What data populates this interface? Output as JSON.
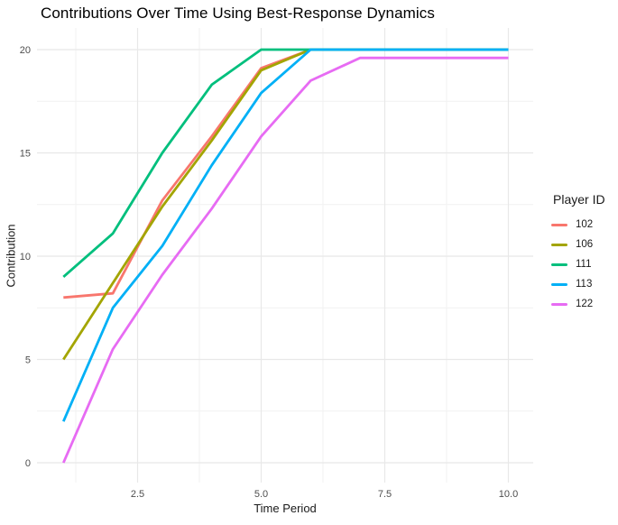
{
  "title": "Contributions Over Time Using Best-Response Dynamics",
  "chart_data": {
    "type": "line",
    "title": "Contributions Over Time Using Best-Response Dynamics",
    "xlabel": "Time Period",
    "ylabel": "Contribution",
    "x": [
      1,
      2,
      3,
      4,
      5,
      6,
      7,
      8,
      9,
      10
    ],
    "series": [
      {
        "name": "102",
        "color": "#F8766D",
        "values": [
          8.0,
          8.2,
          12.7,
          15.8,
          19.1,
          20,
          20,
          20,
          20,
          20
        ]
      },
      {
        "name": "106",
        "color": "#A3A500",
        "values": [
          5.0,
          8.7,
          12.4,
          15.6,
          19.0,
          20,
          20,
          20,
          20,
          20
        ]
      },
      {
        "name": "111",
        "color": "#00BF7D",
        "values": [
          9.0,
          11.1,
          15.0,
          18.3,
          20,
          20,
          20,
          20,
          20,
          20
        ]
      },
      {
        "name": "113",
        "color": "#00B0F6",
        "values": [
          2.0,
          7.5,
          10.5,
          14.4,
          17.9,
          20,
          20,
          20,
          20,
          20
        ]
      },
      {
        "name": "122",
        "color": "#E76BF3",
        "values": [
          0.0,
          5.5,
          9.1,
          12.3,
          15.8,
          18.5,
          19.6,
          19.6,
          19.6,
          19.6
        ]
      }
    ],
    "xlim": [
      0.55,
      10.45
    ],
    "ylim": [
      -1,
      21
    ],
    "x_ticks": {
      "values": [
        2.5,
        5.0,
        7.5,
        10.0
      ],
      "labels": [
        "2.5",
        "5.0",
        "7.5",
        "10.0"
      ]
    },
    "y_ticks": {
      "values": [
        0,
        5,
        10,
        15,
        20
      ],
      "labels": [
        "0",
        "5",
        "10",
        "15",
        "20"
      ]
    },
    "x_minor": [
      1.25,
      3.75,
      6.25,
      8.75
    ],
    "y_minor": [
      2.5,
      7.5,
      12.5,
      17.5
    ],
    "grid": true,
    "legend_position": "right"
  },
  "legend": {
    "title": "Player ID",
    "items": [
      {
        "label": "102",
        "color": "#F8766D"
      },
      {
        "label": "106",
        "color": "#A3A500"
      },
      {
        "label": "111",
        "color": "#00BF7D"
      },
      {
        "label": "113",
        "color": "#00B0F6"
      },
      {
        "label": "122",
        "color": "#E76BF3"
      }
    ]
  },
  "colors": {
    "background": "#FFFFFF",
    "grid_major": "#E8E8E8",
    "grid_minor": "#F1F1F1",
    "tick_text": "#4D4D4D",
    "text": "#1A1A1A"
  }
}
